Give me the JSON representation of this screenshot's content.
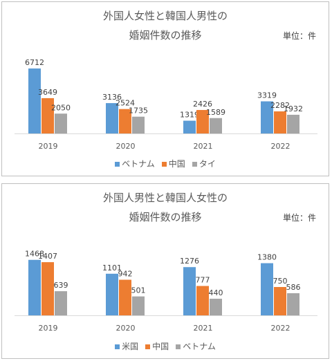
{
  "colors": {
    "blue": "#5b9bd5",
    "orange": "#ed7d31",
    "gray": "#a5a5a5"
  },
  "charts": [
    {
      "title_line1": "外国人女性と韓国人男性の",
      "title_line2": "婚姻件数の推移",
      "unit_label": "単位：件"
    },
    {
      "title_line1": "外国人男性と韓国人女性の",
      "title_line2": "婚姻件数の推移",
      "unit_label": "単位：件"
    }
  ],
  "chart_data": [
    {
      "type": "bar",
      "title": "外国人女性と韓国人男性の 婚姻件数の推移",
      "categories": [
        "2019",
        "2020",
        "2021",
        "2022"
      ],
      "series": [
        {
          "name": "ベトナム",
          "values": [
            6712,
            3136,
            1319,
            3319
          ]
        },
        {
          "name": "中国",
          "values": [
            3649,
            2524,
            2426,
            2282
          ]
        },
        {
          "name": "タイ",
          "values": [
            2050,
            1735,
            1589,
            1932
          ]
        }
      ],
      "ylim": [
        0,
        7000
      ],
      "grid": false,
      "legend_position": "bottom"
    },
    {
      "type": "bar",
      "title": "外国人男性と韓国人女性の 婚姻件数の推移",
      "categories": [
        "2019",
        "2020",
        "2021",
        "2022"
      ],
      "series": [
        {
          "name": "米国",
          "values": [
            1468,
            1101,
            1276,
            1380
          ]
        },
        {
          "name": "中国",
          "values": [
            1407,
            942,
            777,
            750
          ]
        },
        {
          "name": "ベトナム",
          "values": [
            639,
            501,
            440,
            586
          ]
        }
      ],
      "ylim": [
        0,
        1500
      ],
      "grid": false,
      "legend_position": "bottom"
    }
  ]
}
